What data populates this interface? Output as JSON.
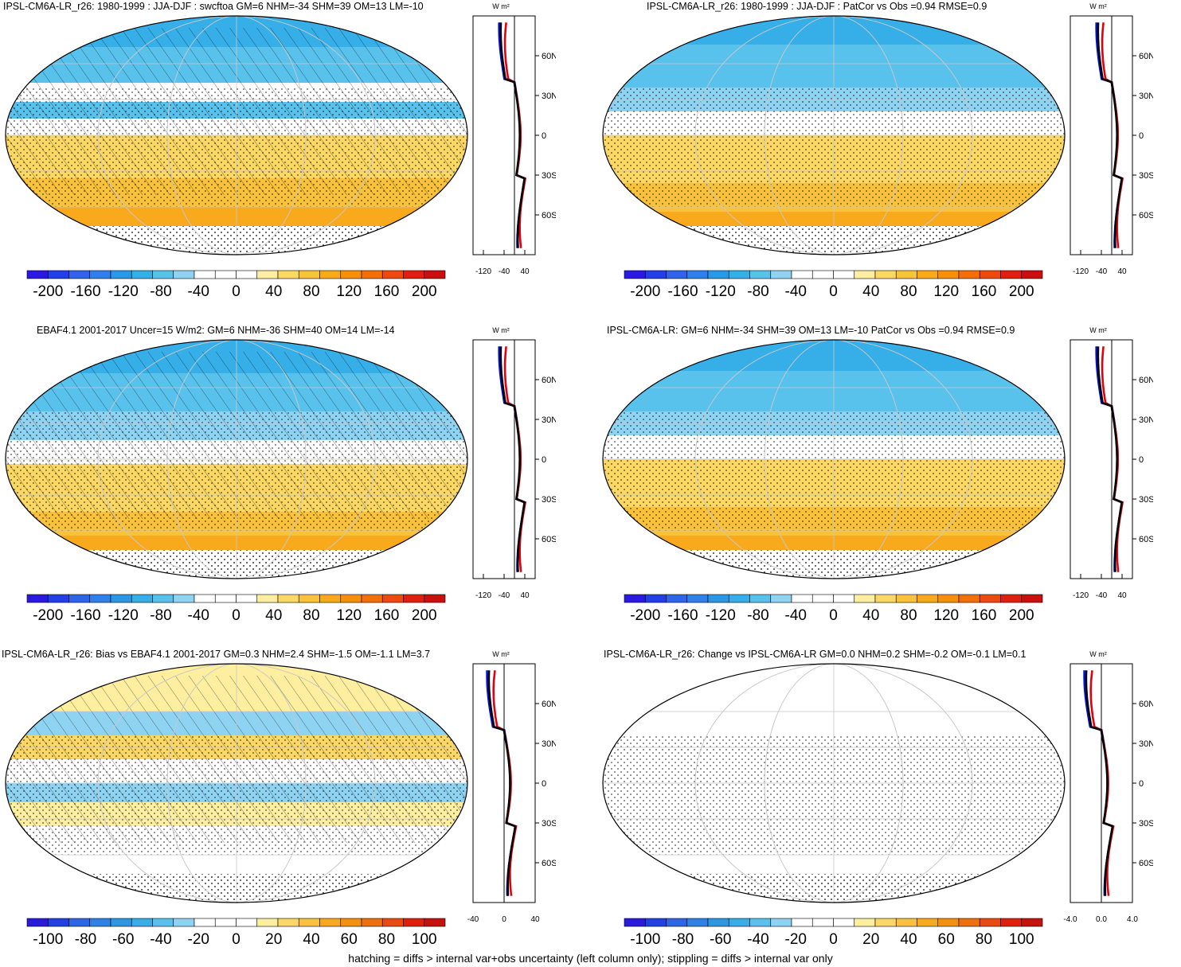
{
  "footer": "hatching = diffs > internal var+obs uncertainty (left column only); stippling = diffs > internal var only",
  "profile_unit": "W m²",
  "palette": [
    "#2a1ae0",
    "#2240e6",
    "#2e64e8",
    "#2f80e8",
    "#2b98e6",
    "#36aee8",
    "#59c2ec",
    "#8fd3f2",
    "#ffffff",
    "#ffffff",
    "#fdeea0",
    "#fbd865",
    "#f9c23c",
    "#f8aa1c",
    "#f6900c",
    "#f2700c",
    "#ec4a10",
    "#e0200e",
    "#c8100c"
  ],
  "chart_data": [
    {
      "type": "heatmap",
      "title": "IPSL-CM6A-LR_r26: 1980-1999 : JJA-DJF : swcftoa GM=6 NHM=-34 SHM=39 OM=13 LM=-10",
      "colorbar_ticks": [
        "-200",
        "-160",
        "-120",
        "-80",
        "-40",
        "0",
        "40",
        "80",
        "120",
        "160",
        "200"
      ],
      "profile": {
        "xticks": [
          "-120",
          "-40",
          "40"
        ],
        "xlim": [
          -160,
          80
        ],
        "ylabels": [
          "60N",
          "30N",
          "0",
          "30S",
          "60S"
        ]
      },
      "overlay": "hatching+stippling"
    },
    {
      "type": "heatmap",
      "title": "IPSL-CM6A-LR_r26: 1980-1999 : JJA-DJF : PatCor vs Obs =0.94 RMSE=0.9",
      "colorbar_ticks": [
        "-200",
        "-160",
        "-120",
        "-80",
        "-40",
        "0",
        "40",
        "80",
        "120",
        "160",
        "200"
      ],
      "profile": {
        "xticks": [
          "-120",
          "-40",
          "40"
        ],
        "xlim": [
          -160,
          80
        ],
        "ylabels": [
          "60N",
          "30N",
          "0",
          "30S",
          "60S"
        ]
      },
      "overlay": "stippling"
    },
    {
      "type": "heatmap",
      "title": "EBAF4.1 2001-2017 Uncer=15 W/m2: GM=6 NHM=-36 SHM=40 OM=14 LM=-14",
      "colorbar_ticks": [
        "-200",
        "-160",
        "-120",
        "-80",
        "-40",
        "0",
        "40",
        "80",
        "120",
        "160",
        "200"
      ],
      "profile": {
        "xticks": [
          "-120",
          "-40",
          "40"
        ],
        "xlim": [
          -160,
          80
        ],
        "ylabels": [
          "60N",
          "30N",
          "0",
          "30S",
          "60S"
        ]
      },
      "overlay": "hatching+stippling"
    },
    {
      "type": "heatmap",
      "title": "IPSL-CM6A-LR: GM=6 NHM=-34 SHM=39 OM=13 LM=-10 PatCor vs Obs =0.94 RMSE=0.9",
      "colorbar_ticks": [
        "-200",
        "-160",
        "-120",
        "-80",
        "-40",
        "0",
        "40",
        "80",
        "120",
        "160",
        "200"
      ],
      "profile": {
        "xticks": [
          "-120",
          "-40",
          "40"
        ],
        "xlim": [
          -160,
          80
        ],
        "ylabels": [
          "60N",
          "30N",
          "0",
          "30S",
          "60S"
        ]
      },
      "overlay": "stippling"
    },
    {
      "type": "heatmap",
      "title": "IPSL-CM6A-LR_r26: Bias vs EBAF4.1 2001-2017 GM=0.3 NHM=2.4 SHM=-1.5 OM=-1.1 LM=3.7",
      "colorbar_ticks": [
        "-100",
        "-80",
        "-60",
        "-40",
        "-20",
        "0",
        "20",
        "40",
        "60",
        "80",
        "100"
      ],
      "profile": {
        "xticks": [
          "-40",
          "0",
          "40"
        ],
        "xlim": [
          -40,
          40
        ],
        "ylabels": [
          "60N",
          "30N",
          "0",
          "30S",
          "60S"
        ]
      },
      "overlay": "hatching+stippling"
    },
    {
      "type": "heatmap",
      "title": "IPSL-CM6A-LR_r26: Change vs IPSL-CM6A-LR GM=0.0 NHM=0.2 SHM=-0.2 OM=-0.1 LM=0.1",
      "colorbar_ticks": [
        "-100",
        "-80",
        "-60",
        "-40",
        "-20",
        "0",
        "20",
        "40",
        "60",
        "80",
        "100"
      ],
      "profile": {
        "xticks": [
          "-4.0",
          "0.0",
          "4.0"
        ],
        "xlim": [
          -4,
          4
        ],
        "ylabels": [
          "60N",
          "30N",
          "0",
          "30S",
          "60S"
        ]
      },
      "overlay": "stippling"
    }
  ]
}
